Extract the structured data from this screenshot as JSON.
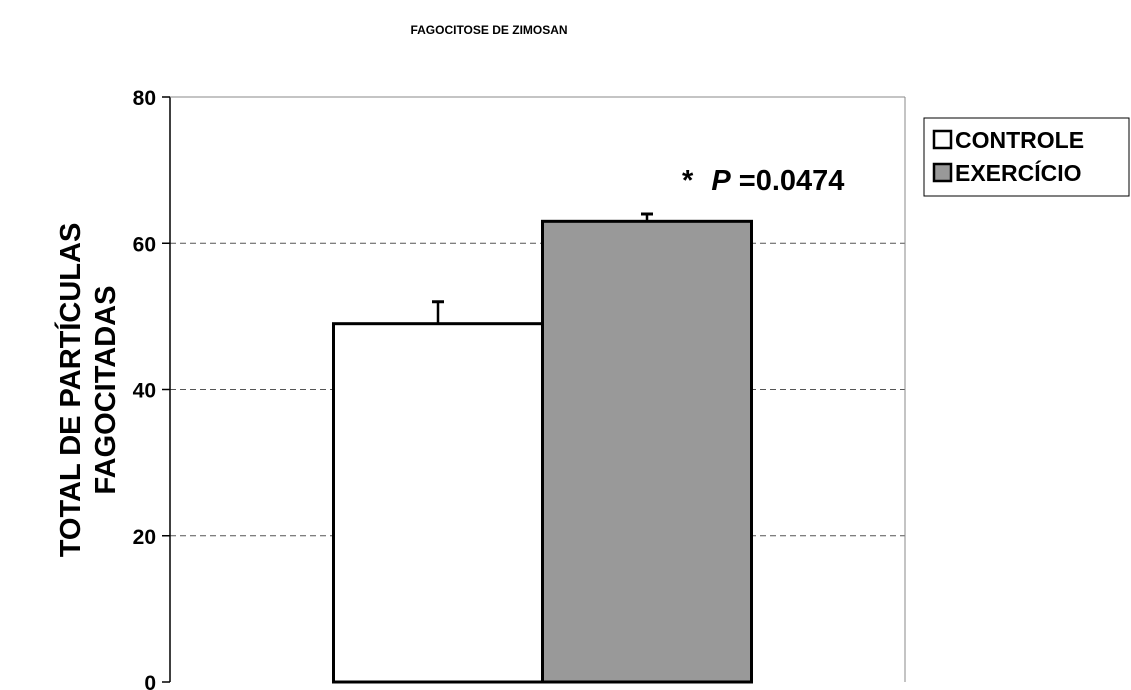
{
  "chart_data": {
    "type": "bar",
    "title": "FAGOCITOSE DE ZIMOSAN",
    "ylabel_lines": [
      "TOTAL DE PARTÍCULAS",
      "FAGOCITADAS"
    ],
    "xlabel": "",
    "ylim": [
      0,
      80
    ],
    "yticks": [
      0,
      20,
      40,
      60,
      80
    ],
    "grid": "horizontal-dashed",
    "legend_position": "top-right",
    "series": [
      {
        "name": "CONTROLE",
        "values": [
          49
        ],
        "error": [
          3
        ],
        "color": "#ffffff"
      },
      {
        "name": "EXERCÍCIO",
        "values": [
          63
        ],
        "error": [
          1
        ],
        "color": "#999999"
      }
    ],
    "annotation": {
      "star": "*",
      "p_label": "P",
      "p_value": "=0.0474"
    }
  }
}
